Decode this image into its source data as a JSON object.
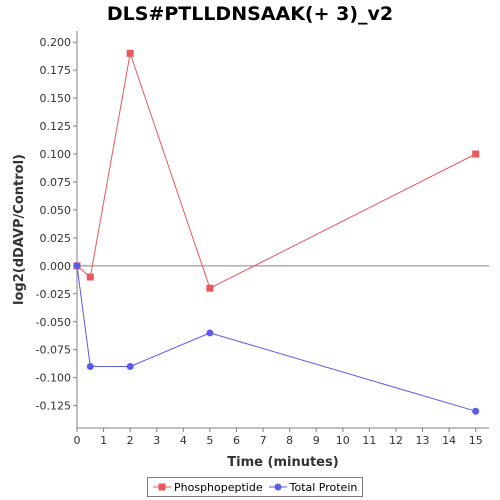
{
  "chart_data": {
    "type": "line",
    "title": "DLS#PTLLDNSAAK(+ 3)_v2",
    "xlabel": "Time (minutes)",
    "ylabel": "log2(dDAVP/Control)",
    "xlim": [
      0,
      15.5
    ],
    "ylim": [
      -0.145,
      0.21
    ],
    "xticks": [
      0,
      1,
      2,
      3,
      4,
      5,
      6,
      7,
      8,
      9,
      10,
      11,
      12,
      13,
      14,
      15
    ],
    "yticks": [
      -0.125,
      -0.1,
      -0.075,
      -0.05,
      -0.025,
      0.0,
      0.025,
      0.05,
      0.075,
      0.1,
      0.125,
      0.15,
      0.175,
      0.2
    ],
    "ytick_labels": [
      "-0.125",
      "-0.100",
      "-0.075",
      "-0.050",
      "-0.025",
      "0.000",
      "0.025",
      "0.050",
      "0.075",
      "0.100",
      "0.125",
      "0.150",
      "0.175",
      "0.200"
    ],
    "zero_line": true,
    "grid": false,
    "legend_position": "bottom",
    "series": [
      {
        "name": "Phosphopeptide",
        "marker": "square",
        "color": "#e8585d",
        "x": [
          0,
          0.5,
          2,
          5,
          15
        ],
        "y": [
          0.0,
          -0.01,
          0.19,
          -0.02,
          0.1
        ]
      },
      {
        "name": "Total Protein",
        "marker": "circle",
        "color": "#5b5bea",
        "x": [
          0,
          0.5,
          2,
          5,
          15
        ],
        "y": [
          0.0,
          -0.09,
          -0.09,
          -0.06,
          -0.13
        ]
      }
    ]
  }
}
